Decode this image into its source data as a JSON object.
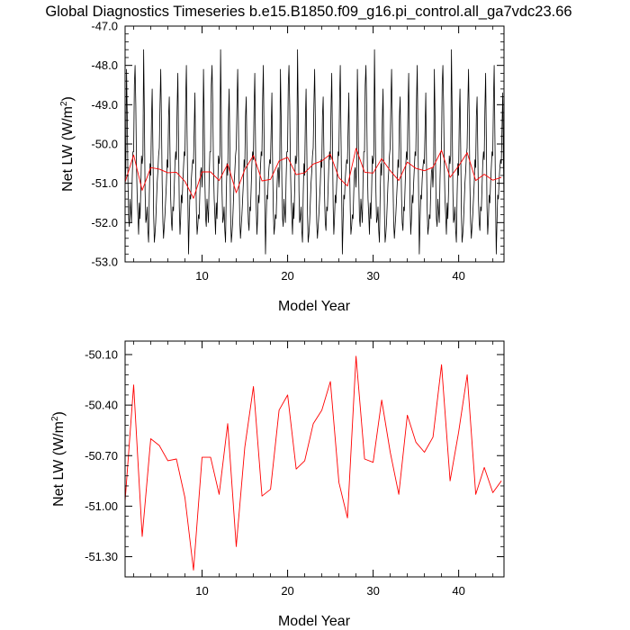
{
  "figure": {
    "title": "Global Diagnostics Timeseries b.e15.B1850.f09_g16.pi_control.all_ga7vdc23.66"
  },
  "colors": {
    "monthly": "#000000",
    "annual": "#ff0000",
    "frame": "#000000"
  },
  "chart_data": [
    {
      "type": "line",
      "title": "Global Diagnostics Timeseries b.e15.B1850.f09_g16.pi_control.all_ga7vdc23.66",
      "xlabel": "Model Year",
      "ylabel_main": "Net LW (W/m",
      "ylabel_sup": "2",
      "ylabel_close": ")",
      "xlim": [
        1,
        45.3
      ],
      "ylim": [
        -53.0,
        -47.0
      ],
      "xticks": [
        10,
        20,
        30,
        40
      ],
      "xtick_labels": [
        "10",
        "20",
        "30",
        "40"
      ],
      "yticks": [
        -53.0,
        -52.0,
        -51.0,
        -50.0,
        -49.0,
        -48.0,
        -47.0
      ],
      "ytick_labels": [
        "-53.0",
        "-52.0",
        "-51.0",
        "-50.0",
        "-49.0",
        "-48.0",
        "-47.0"
      ],
      "grid": false,
      "series": [
        {
          "x_start": 1.0,
          "x_step": 0.0833,
          "values": [
            -51.1,
            -50.6,
            -48.1,
            -49.3,
            -51.0,
            -51.9,
            -52.1,
            -51.4,
            -51.7,
            -52.0,
            -50.9,
            -50.2,
            -50.2,
            -48.5,
            -48.0,
            -49.0,
            -50.6,
            -51.4,
            -51.8,
            -52.3,
            -51.5,
            -51.9,
            -51.2,
            -50.3,
            -50.5,
            -50.3,
            -47.6,
            -49.2,
            -51.2,
            -52.0,
            -51.9,
            -51.6,
            -52.2,
            -52.5,
            -51.3,
            -50.5,
            -50.8,
            -49.4,
            -48.6,
            -50.1,
            -51.8,
            -52.5,
            -52.3,
            -52.0,
            -51.5,
            -51.0,
            -50.7,
            -50.3,
            -50.1,
            -49.0,
            -48.1,
            -49.4,
            -51.0,
            -52.0,
            -52.4,
            -52.1,
            -51.8,
            -51.4,
            -51.0,
            -50.4,
            -50.6,
            -49.3,
            -48.8,
            -50.2,
            -51.4,
            -52.0,
            -52.2,
            -51.6,
            -51.7,
            -51.1,
            -50.5,
            -50.2,
            -50.4,
            -49.1,
            -48.2,
            -49.9,
            -51.6,
            -52.3,
            -51.9,
            -51.3,
            -51.5,
            -51.0,
            -50.6,
            -50.2,
            -50.3,
            -48.9,
            -48.0,
            -49.8,
            -51.4,
            -52.8,
            -52.0,
            -51.3,
            -51.4,
            -50.9,
            -50.6,
            -50.4,
            -50.5,
            -49.6,
            -48.7,
            -50.5,
            -51.7,
            -52.3,
            -52.1,
            -51.8,
            -51.9,
            -51.2,
            -50.7,
            -50.6
          ],
          "note": "representative monthly oscillation (first 9 years); pattern continues through year 45",
          "pattern_years": 9
        },
        {
          "x": [
            1,
            2,
            3,
            4,
            5,
            6,
            7,
            8,
            9,
            10,
            11,
            12,
            13,
            14,
            15,
            16,
            17,
            18,
            19,
            20,
            21,
            22,
            23,
            24,
            25,
            26,
            27,
            28,
            29,
            30,
            31,
            32,
            33,
            34,
            35,
            36,
            37,
            38,
            39,
            40,
            41,
            42,
            43,
            44,
            45
          ],
          "values": [
            -50.97,
            -50.28,
            -51.18,
            -50.6,
            -50.64,
            -50.73,
            -50.72,
            -50.95,
            -51.38,
            -50.71,
            -50.71,
            -50.93,
            -50.51,
            -51.24,
            -50.65,
            -50.29,
            -50.94,
            -50.9,
            -50.43,
            -50.34,
            -50.78,
            -50.73,
            -50.51,
            -50.43,
            -50.26,
            -50.86,
            -51.07,
            -50.11,
            -50.72,
            -50.74,
            -50.37,
            -50.68,
            -50.93,
            -50.46,
            -50.62,
            -50.68,
            -50.59,
            -50.16,
            -50.85,
            -50.56,
            -50.22,
            -50.93,
            -50.77,
            -50.92,
            -50.85
          ]
        }
      ]
    },
    {
      "type": "line",
      "xlabel": "Model Year",
      "ylabel_main": "Net LW (W/m",
      "ylabel_sup": "2",
      "ylabel_close": ")",
      "xlim": [
        1,
        45.3
      ],
      "ylim": [
        -51.42,
        -50.02
      ],
      "xticks": [
        10,
        20,
        30,
        40
      ],
      "xtick_labels": [
        "10",
        "20",
        "30",
        "40"
      ],
      "yticks": [
        -51.3,
        -51.0,
        -50.7,
        -50.4,
        -50.1
      ],
      "ytick_labels": [
        "-51.30",
        "-51.00",
        "-50.70",
        "-50.40",
        "-50.10"
      ],
      "grid": false,
      "series": [
        {
          "x": [
            1,
            2,
            3,
            4,
            5,
            6,
            7,
            8,
            9,
            10,
            11,
            12,
            13,
            14,
            15,
            16,
            17,
            18,
            19,
            20,
            21,
            22,
            23,
            24,
            25,
            26,
            27,
            28,
            29,
            30,
            31,
            32,
            33,
            34,
            35,
            36,
            37,
            38,
            39,
            40,
            41,
            42,
            43,
            44,
            45
          ],
          "values": [
            -50.97,
            -50.28,
            -51.18,
            -50.6,
            -50.64,
            -50.73,
            -50.72,
            -50.95,
            -51.38,
            -50.71,
            -50.71,
            -50.93,
            -50.51,
            -51.24,
            -50.65,
            -50.29,
            -50.94,
            -50.9,
            -50.43,
            -50.34,
            -50.78,
            -50.73,
            -50.51,
            -50.43,
            -50.26,
            -50.86,
            -51.07,
            -50.11,
            -50.72,
            -50.74,
            -50.37,
            -50.68,
            -50.93,
            -50.46,
            -50.62,
            -50.68,
            -50.59,
            -50.16,
            -50.85,
            -50.56,
            -50.22,
            -50.93,
            -50.77,
            -50.92,
            -50.85
          ]
        }
      ]
    }
  ]
}
